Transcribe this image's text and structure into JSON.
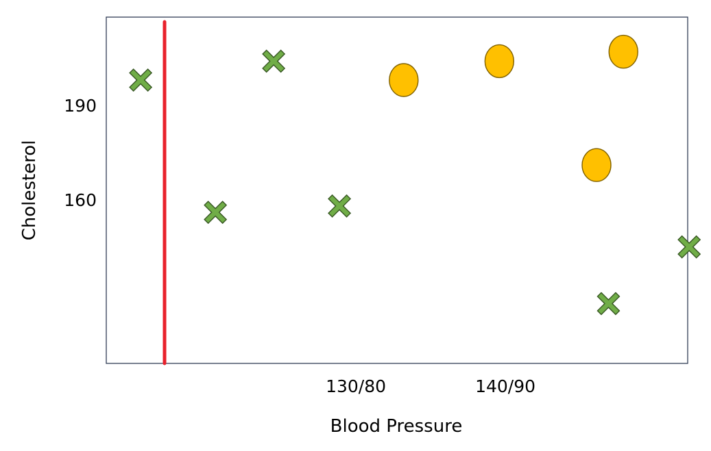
{
  "chart_data": {
    "type": "scatter",
    "title": "",
    "xlabel": "Blood Pressure",
    "ylabel": "Cholesterol",
    "x_ticks": [
      {
        "value": 130,
        "label": "130/80"
      },
      {
        "value": 140,
        "label": "140/90"
      }
    ],
    "y_ticks": [
      {
        "value": 160,
        "label": "160"
      },
      {
        "value": 190,
        "label": "190"
      }
    ],
    "xlim": [
      113.3,
      152.2
    ],
    "ylim": [
      108,
      218
    ],
    "grid": false,
    "legend": null,
    "series": [
      {
        "marker": "x",
        "color": "#70AD47",
        "points": [
          {
            "x": 115.6,
            "y": 198
          },
          {
            "x": 120.6,
            "y": 156
          },
          {
            "x": 124.5,
            "y": 204
          },
          {
            "x": 128.9,
            "y": 158
          },
          {
            "x": 146.9,
            "y": 127
          },
          {
            "x": 152.3,
            "y": 145
          }
        ]
      },
      {
        "marker": "circle",
        "color": "#FFC000",
        "points": [
          {
            "x": 133.2,
            "y": 198
          },
          {
            "x": 139.6,
            "y": 204
          },
          {
            "x": 146.1,
            "y": 171
          },
          {
            "x": 147.9,
            "y": 207
          }
        ]
      }
    ],
    "decision_boundary": {
      "type": "vertical_line",
      "x": 117.2,
      "color": "#E8212B"
    }
  }
}
